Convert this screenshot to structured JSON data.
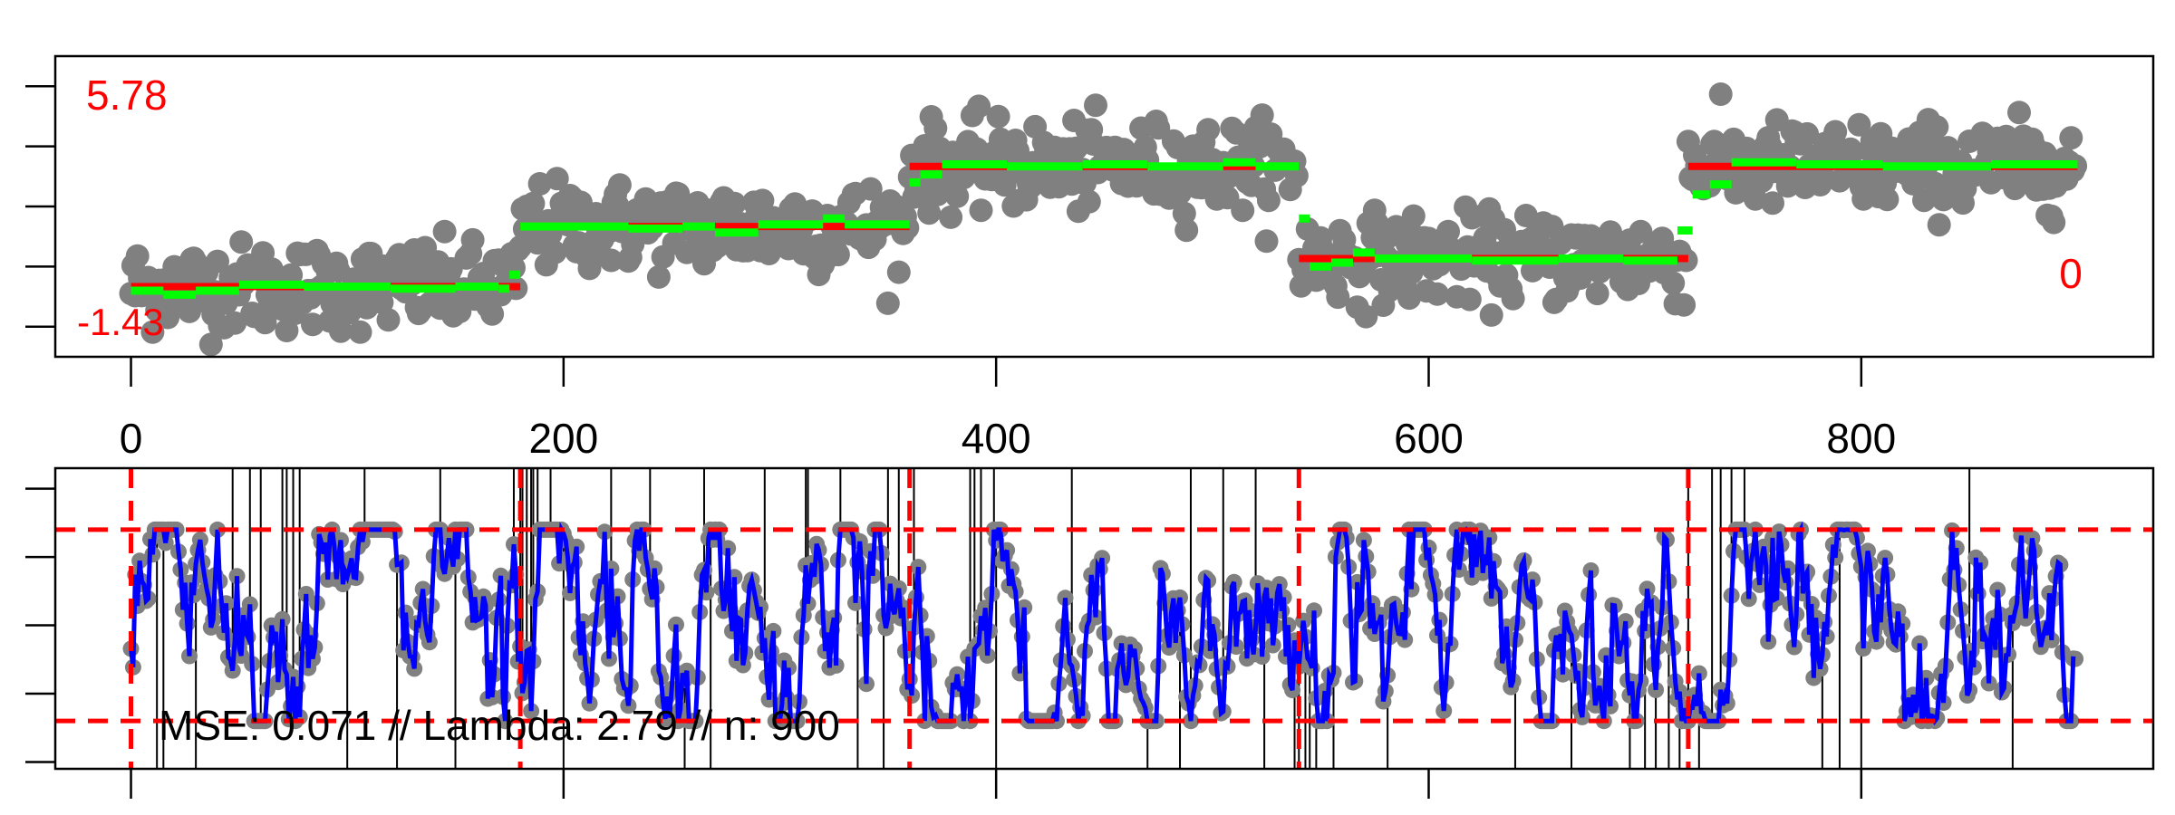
{
  "chart_data": [
    {
      "type": "scatter",
      "panel": "top",
      "xlim": [
        -35,
        935
      ],
      "ylim": [
        -1.75,
        5.75
      ],
      "x_ticks": [
        0,
        200,
        400,
        600,
        800
      ],
      "x_tick_labels": [
        "0",
        "200",
        "400",
        "600",
        "800"
      ],
      "y_ticks": [
        -1,
        0.5,
        2,
        3.5,
        5
      ],
      "y_tick_labels": [
        "",
        "",
        "",
        "",
        ""
      ],
      "grid": false,
      "annotations": {
        "top_left": "5.78",
        "bottom_left": "-1.43",
        "right": "0"
      },
      "points_color": "#808080",
      "true_mean": {
        "name": "",
        "color": "#ff0000",
        "segments": [
          {
            "x": [
              0,
              180
            ],
            "y": 0
          },
          {
            "x": [
              180,
              360
            ],
            "y": 1.5
          },
          {
            "x": [
              360,
              540
            ],
            "y": 3
          },
          {
            "x": [
              540,
              720
            ],
            "y": 0.7
          },
          {
            "x": [
              720,
              900
            ],
            "y": 3
          }
        ]
      },
      "estimate": {
        "name": "",
        "color": "#00ff00",
        "steps": [
          [
            0,
            -0.1
          ],
          [
            15,
            -0.2
          ],
          [
            30,
            -0.1
          ],
          [
            50,
            0.05
          ],
          [
            80,
            0
          ],
          [
            120,
            -0.05
          ],
          [
            150,
            0
          ],
          [
            170,
            -0.05
          ],
          [
            175,
            0.3
          ],
          [
            180,
            1.5
          ],
          [
            230,
            1.45
          ],
          [
            255,
            1.5
          ],
          [
            270,
            1.35
          ],
          [
            290,
            1.55
          ],
          [
            320,
            1.7
          ],
          [
            330,
            1.55
          ],
          [
            360,
            2.6
          ],
          [
            365,
            2.8
          ],
          [
            375,
            3.05
          ],
          [
            405,
            3
          ],
          [
            440,
            3.05
          ],
          [
            470,
            3
          ],
          [
            505,
            3.1
          ],
          [
            520,
            3
          ],
          [
            540,
            1.7
          ],
          [
            545,
            0.5
          ],
          [
            555,
            0.6
          ],
          [
            565,
            0.85
          ],
          [
            575,
            0.7
          ],
          [
            620,
            0.65
          ],
          [
            660,
            0.7
          ],
          [
            690,
            0.65
          ],
          [
            715,
            1.4
          ],
          [
            722,
            2.3
          ],
          [
            730,
            2.55
          ],
          [
            740,
            3.1
          ],
          [
            770,
            3.05
          ],
          [
            810,
            3.0
          ],
          [
            860,
            3.05
          ],
          [
            900,
            3.05
          ]
        ]
      },
      "data_summary": {
        "n": 900,
        "noise_sd": 0.55,
        "changepoints": [
          180,
          360,
          540,
          720
        ]
      }
    },
    {
      "type": "line",
      "panel": "bottom",
      "xlim": [
        -35,
        935
      ],
      "ylim": [
        -2.1,
        2.3
      ],
      "x_ticks": [
        0,
        200,
        400,
        600,
        800
      ],
      "x_tick_labels": [
        "0",
        "200",
        "400",
        "600",
        "800"
      ],
      "y_ticks": [
        -2,
        -1,
        0,
        1,
        2
      ],
      "y_tick_labels": [
        "",
        "",
        "",
        "",
        ""
      ],
      "grid": false,
      "annotation": "MSE: 0.071 // Lambda: 2.79 // n: 900",
      "points_color": "#808080",
      "line_color": "#0000ff",
      "bounds": {
        "values": [
          -1.4,
          1.4
        ],
        "color": "#ff0000",
        "style": "dashed"
      },
      "changepoint_lines": {
        "x": [
          0,
          180,
          360,
          540,
          720
        ],
        "color": "#ff0000",
        "style": "dashed"
      },
      "spike_color": "#000000",
      "spikes": [
        {
          "x": 15,
          "dir": "down"
        },
        {
          "x": 30,
          "dir": "down"
        },
        {
          "x": 47,
          "dir": "up"
        },
        {
          "x": 55,
          "dir": "up"
        },
        {
          "x": 60,
          "dir": "up"
        },
        {
          "x": 70,
          "dir": "up"
        },
        {
          "x": 72,
          "dir": "up"
        },
        {
          "x": 75,
          "dir": "up"
        },
        {
          "x": 78,
          "dir": "up"
        },
        {
          "x": 108,
          "dir": "up"
        },
        {
          "x": 143,
          "dir": "up"
        },
        {
          "x": 177,
          "dir": "up"
        },
        {
          "x": 180,
          "dir": "up"
        },
        {
          "x": 181,
          "dir": "up"
        },
        {
          "x": 183,
          "dir": "up"
        },
        {
          "x": 185,
          "dir": "up"
        },
        {
          "x": 186,
          "dir": "up"
        },
        {
          "x": 188,
          "dir": "up"
        },
        {
          "x": 194,
          "dir": "up"
        },
        {
          "x": 222,
          "dir": "up"
        },
        {
          "x": 240,
          "dir": "up"
        },
        {
          "x": 265,
          "dir": "up"
        },
        {
          "x": 293,
          "dir": "up"
        },
        {
          "x": 312,
          "dir": "up"
        },
        {
          "x": 313,
          "dir": "up"
        },
        {
          "x": 328,
          "dir": "up"
        },
        {
          "x": 350,
          "dir": "up"
        },
        {
          "x": 355,
          "dir": "up"
        },
        {
          "x": 362,
          "dir": "up"
        },
        {
          "x": 388,
          "dir": "up"
        },
        {
          "x": 390,
          "dir": "up"
        },
        {
          "x": 393,
          "dir": "up"
        },
        {
          "x": 399,
          "dir": "up"
        },
        {
          "x": 435,
          "dir": "up"
        },
        {
          "x": 490,
          "dir": "up"
        },
        {
          "x": 505,
          "dir": "up"
        },
        {
          "x": 520,
          "dir": "up"
        },
        {
          "x": 540,
          "dir": "down"
        },
        {
          "x": 545,
          "dir": "down"
        },
        {
          "x": 720,
          "dir": "up"
        },
        {
          "x": 731,
          "dir": "up"
        },
        {
          "x": 735,
          "dir": "up"
        },
        {
          "x": 740,
          "dir": "up"
        },
        {
          "x": 746,
          "dir": "up"
        },
        {
          "x": 850,
          "dir": "up"
        },
        {
          "x": 12,
          "dir": "down"
        },
        {
          "x": 100,
          "dir": "down"
        },
        {
          "x": 123,
          "dir": "down"
        },
        {
          "x": 150,
          "dir": "down"
        },
        {
          "x": 200,
          "dir": "down"
        },
        {
          "x": 256,
          "dir": "down"
        },
        {
          "x": 268,
          "dir": "down"
        },
        {
          "x": 336,
          "dir": "down"
        },
        {
          "x": 348,
          "dir": "down"
        },
        {
          "x": 400,
          "dir": "down"
        },
        {
          "x": 470,
          "dir": "down"
        },
        {
          "x": 485,
          "dir": "down"
        },
        {
          "x": 524,
          "dir": "down"
        },
        {
          "x": 538,
          "dir": "down"
        },
        {
          "x": 543,
          "dir": "down"
        },
        {
          "x": 548,
          "dir": "down"
        },
        {
          "x": 556,
          "dir": "down"
        },
        {
          "x": 581,
          "dir": "down"
        },
        {
          "x": 640,
          "dir": "down"
        },
        {
          "x": 666,
          "dir": "down"
        },
        {
          "x": 693,
          "dir": "down"
        },
        {
          "x": 700,
          "dir": "down"
        },
        {
          "x": 705,
          "dir": "down"
        },
        {
          "x": 711,
          "dir": "down"
        },
        {
          "x": 716,
          "dir": "down"
        },
        {
          "x": 725,
          "dir": "down"
        },
        {
          "x": 782,
          "dir": "down"
        },
        {
          "x": 790,
          "dir": "down"
        },
        {
          "x": 800,
          "dir": "down"
        },
        {
          "x": 870,
          "dir": "down"
        }
      ]
    }
  ]
}
